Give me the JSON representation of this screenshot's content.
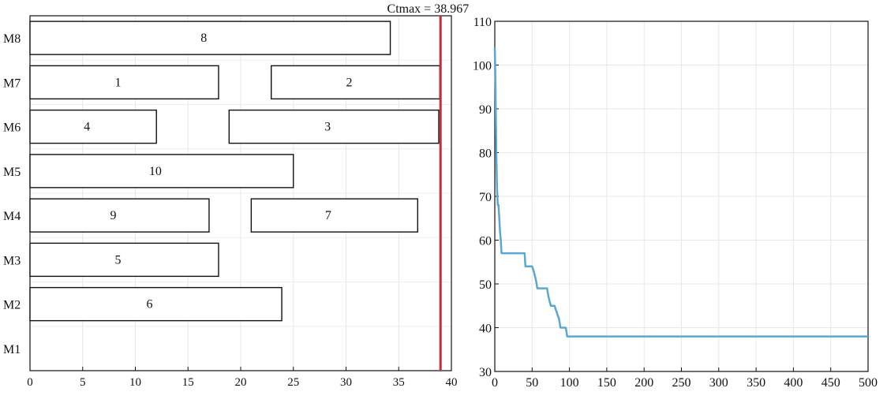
{
  "chart_data": [
    {
      "type": "gantt",
      "annotation": "Ctmax = 38.967",
      "xlim": [
        0,
        40
      ],
      "x_ticks": [
        0,
        5,
        10,
        15,
        20,
        25,
        30,
        35,
        40
      ],
      "machines": [
        "M8",
        "M7",
        "M6",
        "M5",
        "M4",
        "M3",
        "M2",
        "M1"
      ],
      "tasks": [
        {
          "machine": "M8",
          "label": "8",
          "start": 0,
          "end": 34.2
        },
        {
          "machine": "M7",
          "label": "1",
          "start": 0,
          "end": 17.9
        },
        {
          "machine": "M7",
          "label": "2",
          "start": 22.9,
          "end": 38.9
        },
        {
          "machine": "M6",
          "label": "4",
          "start": 0,
          "end": 12.0
        },
        {
          "machine": "M6",
          "label": "3",
          "start": 18.9,
          "end": 38.8
        },
        {
          "machine": "M5",
          "label": "10",
          "start": 0,
          "end": 25.0
        },
        {
          "machine": "M4",
          "label": "9",
          "start": 0,
          "end": 17.0
        },
        {
          "machine": "M4",
          "label": "7",
          "start": 21.0,
          "end": 36.8
        },
        {
          "machine": "M3",
          "label": "5",
          "start": 0,
          "end": 17.9
        },
        {
          "machine": "M2",
          "label": "6",
          "start": 0,
          "end": 23.9
        }
      ],
      "makespan": 38.967,
      "makespan_color": "#c0303a",
      "grid": true
    },
    {
      "type": "line",
      "xlim": [
        0,
        500
      ],
      "ylim": [
        30,
        110
      ],
      "x_ticks": [
        0,
        50,
        100,
        150,
        200,
        250,
        300,
        350,
        400,
        450,
        500
      ],
      "y_ticks": [
        30,
        40,
        50,
        60,
        70,
        80,
        90,
        100,
        110
      ],
      "series": [
        {
          "color": "#5aa7cf",
          "x": [
            0,
            1,
            2,
            3,
            4,
            5,
            6,
            7,
            8,
            9,
            10,
            40,
            41,
            50,
            52,
            55,
            57,
            60,
            70,
            72,
            75,
            77,
            80,
            86,
            88,
            90,
            95,
            97,
            100,
            500
          ],
          "y": [
            104,
            95,
            80,
            72,
            68,
            68,
            65,
            62,
            60,
            57,
            57,
            57,
            54,
            54,
            53,
            51,
            49,
            49,
            49,
            47,
            45,
            45,
            45,
            42,
            40,
            40,
            40,
            38,
            38,
            38
          ]
        }
      ],
      "grid": true
    }
  ]
}
